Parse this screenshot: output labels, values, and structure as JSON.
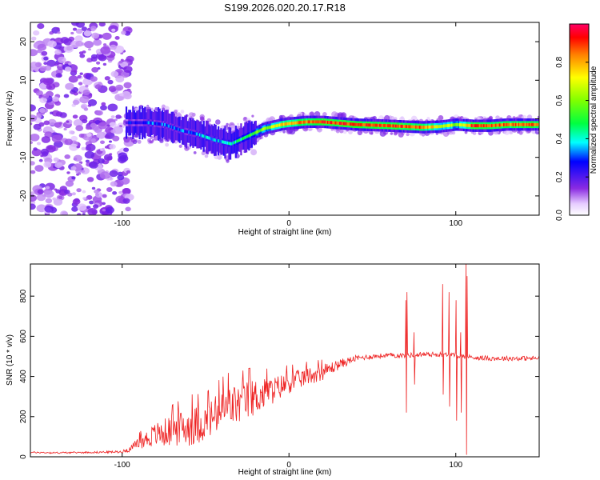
{
  "title": "S199.2026.020.20.17.R18",
  "chart_data": [
    {
      "type": "heatmap",
      "title": "S199.2026.020.20.17.R18",
      "xlabel": "Height of straight line (km)",
      "ylabel": "Frequency (Hz)",
      "xlim": [
        -155,
        150
      ],
      "ylim": [
        -25,
        25
      ],
      "xticks": [
        -100,
        0,
        100
      ],
      "yticks": [
        -20,
        -10,
        0,
        10,
        20
      ],
      "colorbar": {
        "label": "Normalized spectral amplitude",
        "range": [
          0,
          1
        ],
        "ticks": [
          0.0,
          0.2,
          0.4,
          0.6,
          0.8
        ],
        "tick_labels": [
          "0.0",
          "0.2",
          "0.4",
          "0.6",
          "0.8"
        ]
      },
      "noise_region_x": [
        -155,
        -95
      ],
      "ridge": {
        "x": [
          -98,
          -85,
          -75,
          -65,
          -55,
          -45,
          -35,
          -25,
          -15,
          -5,
          0,
          10,
          20,
          40,
          60,
          80,
          90,
          100,
          110,
          120,
          130,
          150
        ],
        "y": [
          -1,
          -1,
          -1.5,
          -3,
          -4,
          -5.5,
          -6.5,
          -4.5,
          -2.5,
          -1.5,
          -1.2,
          -0.8,
          -0.8,
          -1.5,
          -1.8,
          -2.2,
          -2,
          -1.5,
          -1.8,
          -1.8,
          -1.5,
          -1.5
        ],
        "amp": [
          0.25,
          0.3,
          0.3,
          0.3,
          0.35,
          0.35,
          0.4,
          0.5,
          0.6,
          0.75,
          0.8,
          0.85,
          0.9,
          0.9,
          0.9,
          0.85,
          0.7,
          0.6,
          0.9,
          0.9,
          0.85,
          0.85
        ]
      }
    },
    {
      "type": "line",
      "xlabel": "Height of straight line (km)",
      "ylabel": "SNR (10 * v/v)",
      "xlim": [
        -155,
        150
      ],
      "ylim": [
        0,
        960
      ],
      "xticks": [
        -100,
        0,
        100
      ],
      "yticks": [
        0,
        200,
        400,
        600,
        800
      ],
      "series": [
        {
          "name": "SNR",
          "color": "#ee2222",
          "x": [
            -155,
            -140,
            -120,
            -100,
            -95,
            -90,
            -85,
            -80,
            -75,
            -70,
            -65,
            -60,
            -55,
            -50,
            -45,
            -40,
            -35,
            -30,
            -25,
            -20,
            -15,
            -10,
            -5,
            0,
            5,
            10,
            20,
            30,
            40,
            50,
            60,
            70,
            80,
            90,
            100,
            110,
            120,
            130,
            140,
            150
          ],
          "values": [
            22,
            20,
            22,
            25,
            40,
            70,
            90,
            110,
            120,
            130,
            140,
            150,
            160,
            170,
            200,
            220,
            250,
            260,
            280,
            300,
            310,
            330,
            350,
            370,
            380,
            400,
            420,
            460,
            490,
            500,
            505,
            505,
            510,
            510,
            505,
            495,
            490,
            490,
            490,
            490
          ],
          "amplitude": [
            4,
            4,
            4,
            6,
            15,
            30,
            45,
            60,
            70,
            80,
            90,
            100,
            95,
            90,
            100,
            110,
            110,
            100,
            100,
            90,
            80,
            70,
            60,
            55,
            50,
            45,
            40,
            25,
            15,
            12,
            12,
            12,
            12,
            12,
            12,
            12,
            12,
            12,
            12,
            12
          ]
        }
      ],
      "spikes": [
        {
          "x": 70,
          "values": [
            780,
            220,
            820
          ]
        },
        {
          "x": 75,
          "values": [
            620,
            360
          ]
        },
        {
          "x": 92,
          "values": [
            860,
            310
          ]
        },
        {
          "x": 96,
          "values": [
            820,
            250
          ]
        },
        {
          "x": 100,
          "values": [
            780,
            180
          ]
        },
        {
          "x": 103,
          "values": [
            620,
            220
          ]
        },
        {
          "x": 106,
          "values": [
            960,
            10,
            900
          ]
        }
      ]
    }
  ]
}
